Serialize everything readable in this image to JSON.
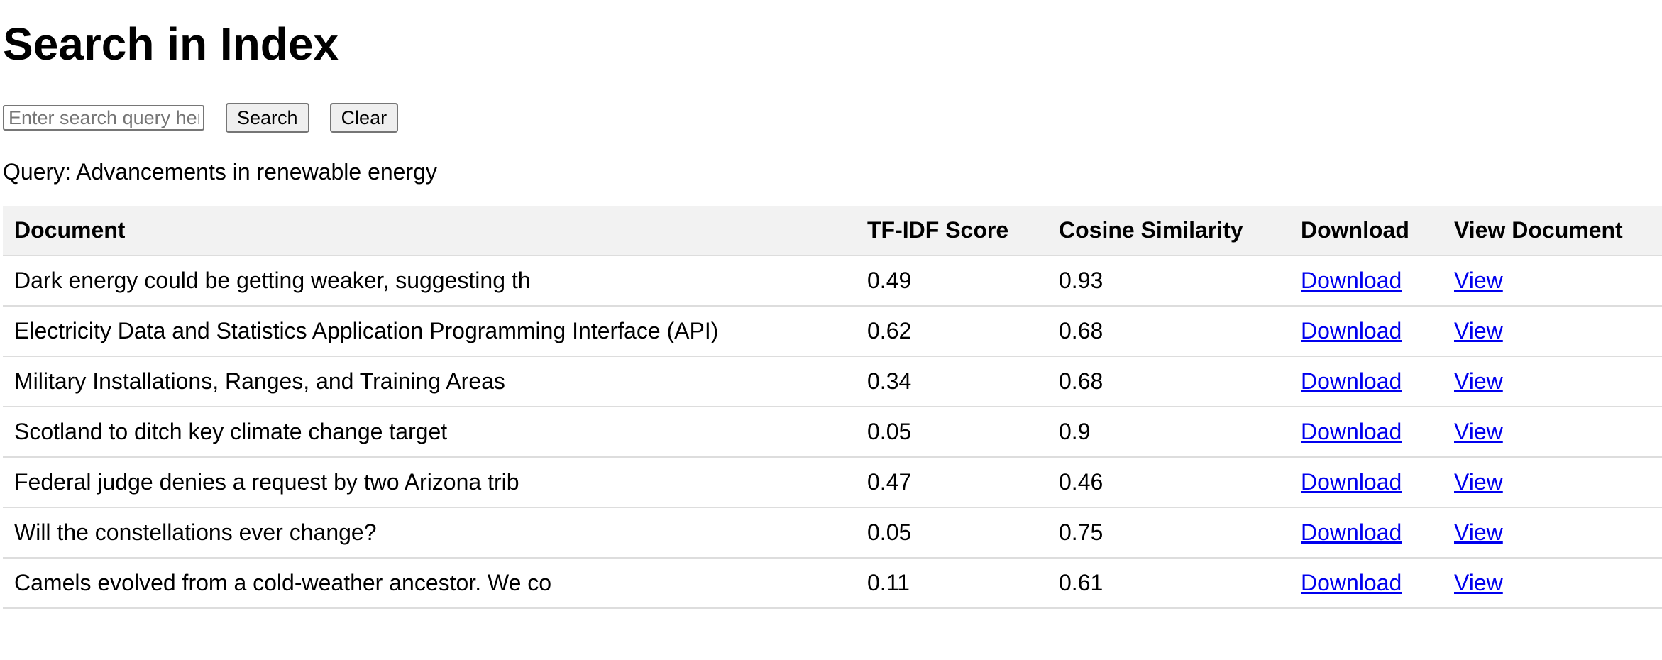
{
  "header": {
    "title": "Search in Index"
  },
  "search": {
    "value": "",
    "placeholder": "Enter search query here",
    "search_label": "Search",
    "clear_label": "Clear"
  },
  "query": {
    "label": "Query:",
    "text": "Advancements in renewable energy"
  },
  "table": {
    "columns": [
      "Document",
      "TF-IDF Score",
      "Cosine Similarity",
      "Download",
      "View Document"
    ],
    "rows": [
      {
        "document": "Dark energy could be getting weaker, suggesting th",
        "tfidf": "0.49",
        "cosine": "0.93",
        "download": "Download",
        "view": "View"
      },
      {
        "document": "Electricity Data and Statistics Application Programming Interface (API)",
        "tfidf": "0.62",
        "cosine": "0.68",
        "download": "Download",
        "view": "View"
      },
      {
        "document": "Military Installations, Ranges, and Training Areas",
        "tfidf": "0.34",
        "cosine": "0.68",
        "download": "Download",
        "view": "View"
      },
      {
        "document": "Scotland to ditch key climate change target",
        "tfidf": "0.05",
        "cosine": "0.9",
        "download": "Download",
        "view": "View"
      },
      {
        "document": "Federal judge denies a request by two Arizona trib",
        "tfidf": "0.47",
        "cosine": "0.46",
        "download": "Download",
        "view": "View"
      },
      {
        "document": "Will the constellations ever change?",
        "tfidf": "0.05",
        "cosine": "0.75",
        "download": "Download",
        "view": "View"
      },
      {
        "document": "Camels evolved from a cold-weather ancestor. We co",
        "tfidf": "0.11",
        "cosine": "0.61",
        "download": "Download",
        "view": "View"
      }
    ]
  },
  "colors": {
    "link": "#0000ee",
    "header_bg": "#f2f2f2",
    "row_border": "#dddddd"
  }
}
